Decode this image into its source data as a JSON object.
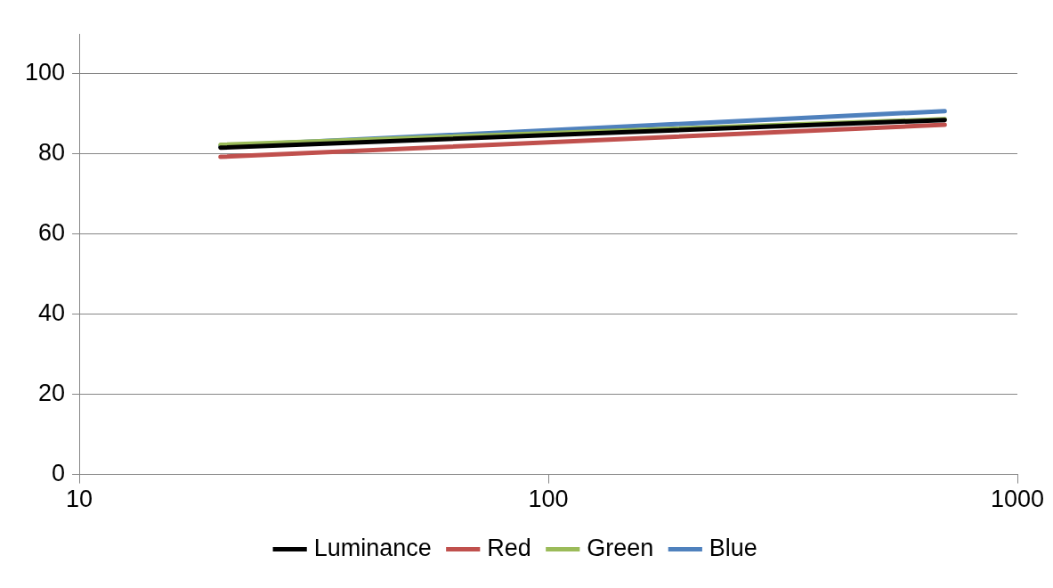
{
  "chart_data": {
    "type": "line",
    "x": [
      20,
      700
    ],
    "log": "x",
    "xlim": [
      10,
      1000
    ],
    "xticks": [
      10,
      100,
      1000
    ],
    "ylim": [
      0,
      110
    ],
    "yticks": [
      0,
      20,
      40,
      60,
      80,
      100
    ],
    "grid": "y",
    "legend": "bottom",
    "marker": "none",
    "line_style": "solid",
    "series": [
      {
        "name": "Luminance",
        "color": "#000000",
        "values": [
          81.6,
          88.5
        ]
      },
      {
        "name": "Red",
        "color": "#c0504d",
        "values": [
          79.3,
          87.3
        ]
      },
      {
        "name": "Green",
        "color": "#9bbb59",
        "values": [
          82.3,
          88.7
        ]
      },
      {
        "name": "Blue",
        "color": "#4f81bd",
        "values": [
          82,
          90.7
        ]
      }
    ]
  }
}
